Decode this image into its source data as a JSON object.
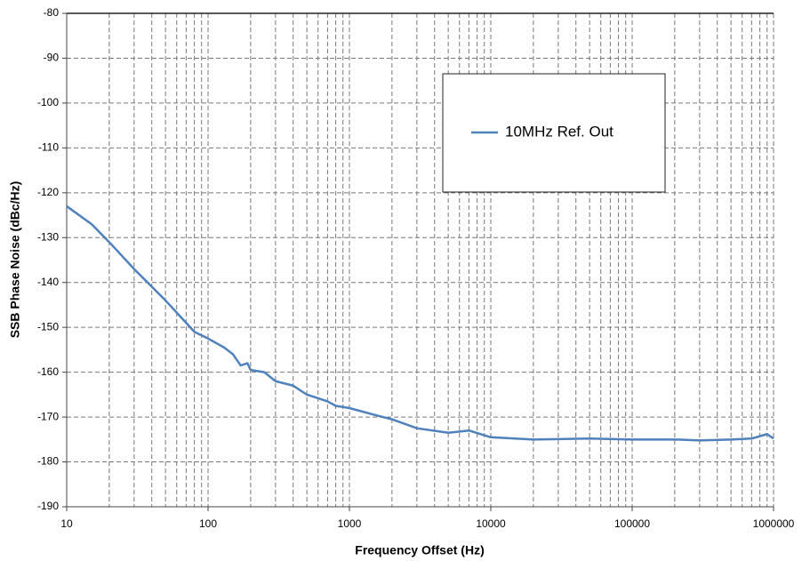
{
  "chart_data": {
    "type": "line",
    "x_label": "Frequency Offset (Hz)",
    "y_label": "SSB Phase Noise (dBc/Hz)",
    "log_x": true,
    "grid": true,
    "legend": "upper right",
    "xlim": [
      10,
      1000000
    ],
    "xticks": [
      10,
      100,
      1000,
      10000,
      100000,
      1000000
    ],
    "ylim": [
      -190,
      -80
    ],
    "yticks": [
      -80,
      -90,
      -100,
      -110,
      -120,
      -130,
      -140,
      -150,
      -160,
      -170,
      -180,
      -190
    ],
    "x": [
      10,
      15,
      20,
      30,
      50,
      70,
      80,
      100,
      130,
      150,
      170,
      190,
      200,
      250,
      300,
      400,
      500,
      700,
      800,
      1000,
      1500,
      2000,
      3000,
      5000,
      7000,
      10000,
      20000,
      50000,
      100000,
      200000,
      300000,
      500000,
      700000,
      900000,
      1000000
    ],
    "series": [
      {
        "name": "10MHz Ref. Out",
        "color": "#4f81bd",
        "values": [
          -123,
          -127,
          -131,
          -137,
          -144,
          -149,
          -151,
          -152.5,
          -154.5,
          -156,
          -158.5,
          -158,
          -159.5,
          -160,
          -162,
          -163,
          -165,
          -166.5,
          -167.5,
          -168,
          -169.5,
          -170.5,
          -172.5,
          -173.5,
          -173,
          -174.5,
          -175,
          -174.8,
          -175,
          -175,
          -175.2,
          -175,
          -174.8,
          -173.8,
          -174.8
        ]
      }
    ]
  }
}
